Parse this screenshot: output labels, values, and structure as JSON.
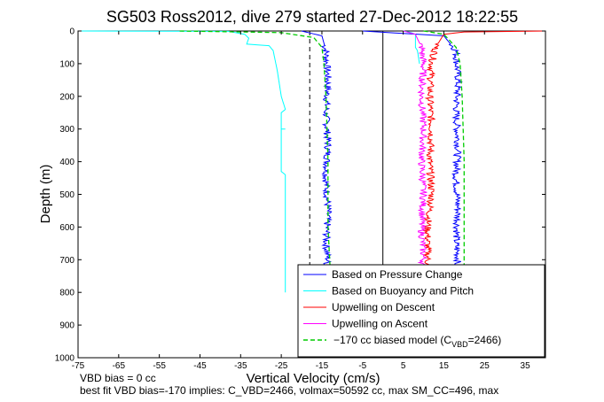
{
  "chart_data": {
    "type": "line",
    "title": "SG503 Ross2012, dive 279 started 27-Dec-2012 18:22:55",
    "xlabel": "Vertical Velocity (cm/s)",
    "ylabel": "Depth (m)",
    "xlim": [
      -75,
      40
    ],
    "ylim": [
      1000,
      0
    ],
    "xticks": [
      "-75",
      "-65",
      "-55",
      "-45",
      "-35",
      "-25",
      "-15",
      "-5",
      "5",
      "15",
      "25",
      "35"
    ],
    "yticks": [
      "0",
      "100",
      "200",
      "300",
      "400",
      "500",
      "600",
      "700",
      "800",
      "900",
      "1000"
    ],
    "series": [
      {
        "name": "Based on Pressure Change",
        "color": "#0000ff",
        "style": "solid",
        "groups": [
          {
            "x": [
              -20,
              -15,
              -14,
              -13.5,
              -14,
              -13.5,
              -14,
              -13.5,
              -14,
              -13.5,
              -14
            ],
            "y": [
              0,
              15,
              60,
              150,
              250,
              350,
              450,
              550,
              650,
              700,
              720
            ]
          },
          {
            "x": [
              -5,
              15,
              18,
              18.5,
              18,
              18.5,
              18,
              18.5,
              18,
              18.5,
              18
            ],
            "y": [
              0,
              15,
              60,
              150,
              250,
              350,
              450,
              550,
              650,
              700,
              720
            ]
          }
        ]
      },
      {
        "name": "Based on Buoyancy and Pitch",
        "color": "#00ffff",
        "style": "solid",
        "groups": [
          {
            "x": [
              -75,
              -38,
              -34,
              -33,
              -33.5,
              -28,
              -27,
              -26,
              -25,
              -24,
              -25,
              -25,
              -24,
              -25,
              -25,
              -25,
              -24,
              -24,
              -24
            ],
            "y": [
              0,
              1,
              10,
              22,
              40,
              45,
              60,
              120,
              200,
              240,
              250,
              300,
              300,
              300,
              420,
              430,
              440,
              600,
              800
            ]
          },
          {
            "x": [
              5,
              7,
              8,
              8,
              8.5,
              9
            ],
            "y": [
              0,
              5,
              10,
              50,
              60,
              100
            ]
          }
        ]
      },
      {
        "name": "Upwelling on Descent",
        "color": "#ff0000",
        "style": "solid",
        "groups": [
          {
            "x": [
              40,
              20,
              15,
              13,
              12,
              11.5,
              12,
              11.5,
              12,
              11,
              11,
              11,
              11
            ],
            "y": [
              0,
              3,
              10,
              50,
              100,
              200,
              300,
              400,
              500,
              600,
              650,
              700,
              720
            ]
          }
        ]
      },
      {
        "name": "Upwelling on Ascent",
        "color": "#ff00ff",
        "style": "solid",
        "groups": [
          {
            "x": [
              5,
              8,
              9.5,
              10,
              9.5,
              10,
              9.5,
              10,
              9.5,
              10,
              9.5
            ],
            "y": [
              0,
              10,
              50,
              100,
              200,
              300,
              400,
              500,
              600,
              700,
              720
            ]
          }
        ]
      },
      {
        "name": "−170 cc biased model (C",
        "color": "#00cc00",
        "style": "dashed",
        "groups": [
          {
            "x": [
              -50,
              -25,
              -17,
              -15,
              -14.5,
              -14,
              -13.5,
              -13.5,
              -13
            ],
            "y": [
              0,
              5,
              20,
              50,
              100,
              200,
              400,
              600,
              720
            ]
          },
          {
            "x": [
              10,
              15,
              18,
              19,
              19.5,
              20,
              20,
              20
            ],
            "y": [
              0,
              10,
              50,
              100,
              200,
              400,
              600,
              720
            ]
          }
        ]
      }
    ],
    "legend_extra": {
      "sub": "VBD",
      "suffix": "=2466)"
    },
    "vertical_lines": [
      {
        "x": 0,
        "style": "solid",
        "color": "#000000"
      },
      {
        "x": -18,
        "style": "dashed",
        "color": "#000000"
      }
    ],
    "legend_position": "bottom-right",
    "grid": false
  },
  "footer": {
    "line1": "VBD bias = 0 cc",
    "line2": "best fit VBD bias=-170 implies: C_VBD=2466, volmax=50592 cc, max SM_CC=496, max"
  }
}
